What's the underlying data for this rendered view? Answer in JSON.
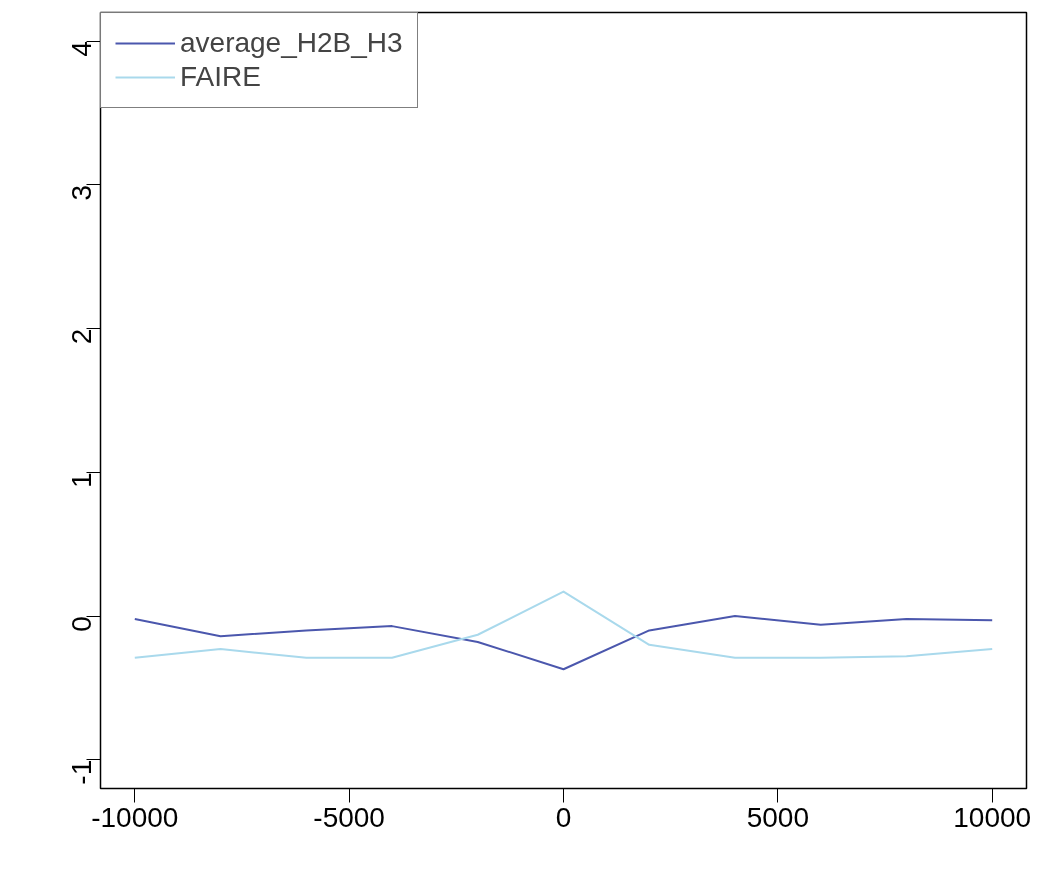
{
  "chart_data": {
    "type": "line",
    "x": [
      -10000,
      -8000,
      -6000,
      -4000,
      -2000,
      0,
      2000,
      4000,
      6000,
      8000,
      10000
    ],
    "series": [
      {
        "name": "average_H2B_H3",
        "color": "#4b57ad",
        "values": [
          -0.02,
          -0.14,
          -0.1,
          -0.07,
          -0.18,
          -0.37,
          -0.1,
          0.0,
          -0.06,
          -0.02,
          -0.03
        ]
      },
      {
        "name": "FAIRE",
        "color": "#a9d9ec",
        "values": [
          -0.29,
          -0.23,
          -0.29,
          -0.29,
          -0.13,
          0.17,
          -0.2,
          -0.29,
          -0.29,
          -0.28,
          -0.23
        ]
      }
    ],
    "xlim": [
      -10800,
      10800
    ],
    "ylim": [
      -1.2,
      4.2
    ],
    "xticks": [
      -10000,
      -5000,
      0,
      5000,
      10000
    ],
    "yticks": [
      -1,
      0,
      1,
      2,
      3,
      4
    ],
    "grid": false,
    "legend": "top left",
    "marker": "none",
    "line_style": "solid"
  }
}
